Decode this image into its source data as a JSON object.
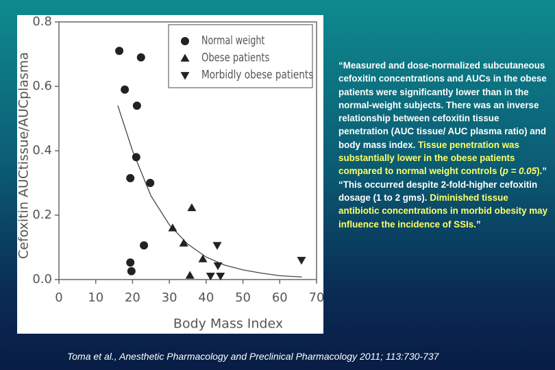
{
  "chart_data": {
    "type": "scatter",
    "xlabel": "Body Mass Index",
    "ylabel": "Cefoxitin AUCtissue/AUCplasma",
    "xlim": [
      0,
      70
    ],
    "xticks": [
      0,
      10,
      20,
      30,
      40,
      50,
      60,
      70
    ],
    "ylim": [
      0,
      0.8
    ],
    "yticks": [
      {
        "value": 0,
        "label": "0.0"
      },
      0.2,
      0.4,
      0.6,
      0.8
    ],
    "legend": "upper right",
    "series": [
      {
        "name": "Normal weight",
        "marker": "circle",
        "color": "#222222",
        "x": [
          16.4,
          22.3,
          17.9,
          21.2,
          21.0,
          19.4,
          24.8,
          23.1,
          19.4,
          19.7
        ],
        "values": [
          0.71,
          0.69,
          0.59,
          0.54,
          0.38,
          0.315,
          0.3,
          0.106,
          0.053,
          0.026
        ]
      },
      {
        "name": "Obese patients",
        "marker": "triangle-up",
        "color": "#222222",
        "x": [
          30.9,
          33.9,
          36.1,
          35.6,
          39.1
        ],
        "values": [
          0.16,
          0.113,
          0.223,
          0.013,
          0.064
        ]
      },
      {
        "name": "Morbidly obese patients",
        "marker": "triangle-down",
        "color": "#222222",
        "x": [
          43.0,
          43.2,
          41.2,
          43.9,
          65.9
        ],
        "values": [
          0.106,
          0.043,
          0.011,
          0.011,
          0.06
        ]
      }
    ],
    "trend_line": {
      "color": "#444444",
      "x": [
        16,
        20,
        25,
        30,
        35,
        40,
        45,
        50,
        55,
        60,
        66
      ],
      "values": [
        0.54,
        0.4,
        0.26,
        0.17,
        0.11,
        0.07,
        0.045,
        0.03,
        0.02,
        0.012,
        0.008
      ]
    }
  },
  "quote": {
    "paragraphs": [
      [
        {
          "text": "“Measured and dose-normalized subcutaneous cefoxitin concentrations and AUCs in the obese patients were significantly lower than in the normal-weight subjects. There was an inverse relationship between cefoxitin tissue penetration (AUC tissue/ AUC plasma ratio) and body mass index. ",
          "color": "#ffffff"
        },
        {
          "text": "Tissue penetration was substantially lower in the obese patients compared to normal weight controls (",
          "color": "#ffff66"
        },
        {
          "text": "p = 0.05",
          "color": "#ffff66",
          "italic": true
        },
        {
          "text": ").",
          "color": "#ffff66"
        },
        {
          "text": "”",
          "color": "#ffffff"
        }
      ],
      [
        {
          "text": "“This occurred despite 2-fold-higher cefoxitin dosage (1 to 2 gms). ",
          "color": "#ffffff"
        },
        {
          "text": "Diminished tissue antibiotic concentrations in morbid obesity may influence the incidence of SSIs.",
          "color": "#ffff66"
        },
        {
          "text": "”",
          "color": "#ffffff"
        }
      ]
    ]
  },
  "citation": "Toma et al., Anesthetic Pharmacology and Preclinical Pharmacology 2011; 113:730-737"
}
